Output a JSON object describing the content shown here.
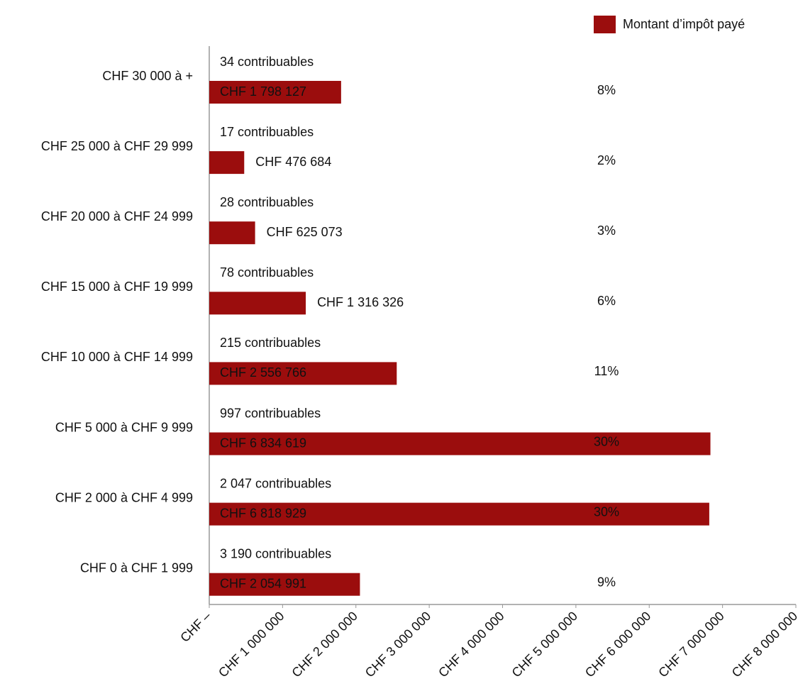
{
  "chart_data": {
    "type": "barh",
    "categories": [
      "CHF 30 000 à +",
      "CHF 25 000 à CHF 29 999",
      "CHF 20 000 à CHF 24 999",
      "CHF 15 000 à CHF 19 999",
      "CHF 10 000 à CHF 14 999",
      "CHF 5 000 à CHF 9 999",
      "CHF 2 000 à CHF 4 999",
      "CHF 0 à CHF 1 999"
    ],
    "series": [
      {
        "name": "Montant d’impôt payé",
        "color": "#9b0d0d",
        "values": [
          1798127,
          476684,
          625073,
          1316326,
          2556766,
          6834619,
          6818929,
          2054991
        ],
        "value_labels": [
          "CHF 1 798 127",
          "CHF 476 684",
          "CHF 625 073",
          "CHF 1 316 326",
          "CHF 2 556 766",
          "CHF 6 834 619",
          "CHF 6 818 929",
          "CHF 2 054 991"
        ]
      }
    ],
    "counts": [
      34,
      17,
      28,
      78,
      215,
      997,
      2047,
      3190
    ],
    "count_labels": [
      "34 contribuables",
      "17 contribuables",
      "28 contribuables",
      "78 contribuables",
      "215 contribuables",
      "997 contribuables",
      "2 047 contribuables",
      "3 190 contribuables"
    ],
    "shares": [
      8,
      2,
      3,
      6,
      11,
      30,
      30,
      9
    ],
    "share_labels": [
      "8%",
      "2%",
      "3%",
      "6%",
      "11%",
      "30%",
      "30%",
      "9%"
    ],
    "xlim": [
      0,
      8000000
    ],
    "xticks": [
      {
        "value": 0,
        "label": "CHF –"
      },
      {
        "value": 1000000,
        "label": "CHF 1 000 000"
      },
      {
        "value": 2000000,
        "label": "CHF 2 000 000"
      },
      {
        "value": 3000000,
        "label": "CHF 3 000 000"
      },
      {
        "value": 4000000,
        "label": "CHF 4 000 000"
      },
      {
        "value": 5000000,
        "label": "CHF 5 000 000"
      },
      {
        "value": 6000000,
        "label": "CHF 6 000 000"
      },
      {
        "value": 7000000,
        "label": "CHF 7 000 000"
      },
      {
        "value": 8000000,
        "label": "CHF 8 000 000"
      }
    ],
    "legend": "top-right"
  }
}
